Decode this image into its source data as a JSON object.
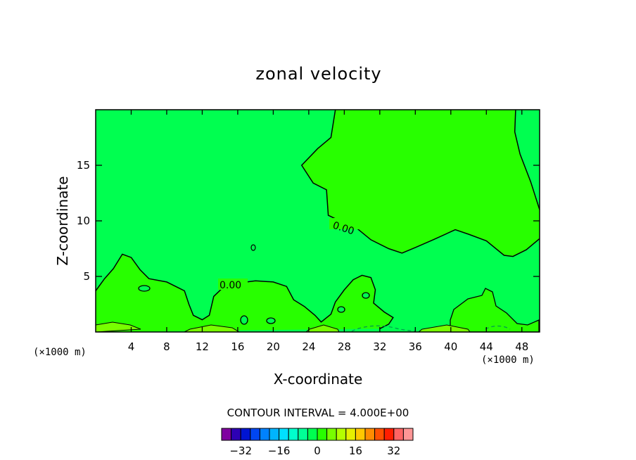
{
  "chart_data": {
    "type": "contour",
    "title": "zonal velocity",
    "xlabel": "X-coordinate",
    "ylabel": "Z-coordinate",
    "x_unit": "(×1000 m)",
    "z_unit": "(×1000 m)",
    "xlim": [
      0,
      50
    ],
    "ylim": [
      0,
      20
    ],
    "x_ticks": [
      4,
      8,
      12,
      16,
      20,
      24,
      28,
      32,
      36,
      40,
      44,
      48
    ],
    "y_ticks": [
      5,
      10,
      15
    ],
    "contour_interval_text": "CONTOUR INTERVAL = 4.000E+00",
    "contour_labels": [
      "0.00",
      "0.00"
    ],
    "zero_contour_upper": [
      [
        27,
        20
      ],
      [
        26.5,
        17.5
      ],
      [
        25,
        16.5
      ],
      [
        23.2,
        15
      ],
      [
        24.5,
        13.4
      ],
      [
        26,
        12.8
      ],
      [
        26.2,
        10.5
      ],
      [
        27.5,
        10
      ],
      [
        29,
        9.6
      ],
      [
        31,
        8.3
      ],
      [
        33,
        7.5
      ],
      [
        34.5,
        7.1
      ],
      [
        36,
        7.6
      ],
      [
        38,
        8.3
      ],
      [
        40.5,
        9.2
      ],
      [
        42,
        8.8
      ],
      [
        44,
        8.2
      ],
      [
        46,
        6.9
      ],
      [
        47,
        6.8
      ],
      [
        48.5,
        7.4
      ],
      [
        50,
        8.4
      ]
    ],
    "zero_contour_right": [
      [
        47.3,
        20
      ],
      [
        47.2,
        18
      ],
      [
        47.8,
        16
      ],
      [
        49,
        13.5
      ],
      [
        50,
        11
      ]
    ],
    "zero_contour_lower": [
      [
        0,
        3.7
      ],
      [
        1,
        4.8
      ],
      [
        2,
        5.7
      ],
      [
        3,
        7
      ],
      [
        4,
        6.7
      ],
      [
        5,
        5.6
      ],
      [
        6,
        4.8
      ],
      [
        8,
        4.5
      ],
      [
        10,
        3.7
      ],
      [
        10.5,
        2.5
      ],
      [
        11,
        1.5
      ],
      [
        12,
        1.1
      ],
      [
        12.8,
        1.5
      ],
      [
        13.3,
        3.2
      ],
      [
        14.6,
        4.2
      ],
      [
        16,
        4.4
      ],
      [
        18,
        4.6
      ],
      [
        20,
        4.5
      ],
      [
        21.5,
        4.1
      ],
      [
        22.3,
        2.9
      ],
      [
        23.5,
        2.3
      ],
      [
        24.7,
        1.5
      ],
      [
        25.4,
        0.9
      ],
      [
        26.5,
        1.6
      ],
      [
        27,
        2.7
      ],
      [
        28,
        3.8
      ],
      [
        29,
        4.7
      ],
      [
        30,
        5.1
      ],
      [
        31,
        4.9
      ],
      [
        31.5,
        3.8
      ],
      [
        31.3,
        2.6
      ],
      [
        32.5,
        1.8
      ],
      [
        33.5,
        1.3
      ],
      [
        33,
        0.7
      ],
      [
        32,
        0.3
      ]
    ],
    "colorbar": {
      "levels": [
        -36,
        -32,
        -28,
        -24,
        -20,
        -16,
        -12,
        -8,
        -4,
        0,
        4,
        8,
        12,
        16,
        20,
        24,
        28,
        32,
        36
      ],
      "tick_labels": [
        "-32",
        "-16",
        "0",
        "16",
        "32"
      ],
      "colors": [
        "#7f00a0",
        "#2d00b4",
        "#0014d2",
        "#0046f0",
        "#0082ff",
        "#00b4ff",
        "#00e0ff",
        "#00ffcc",
        "#00ff96",
        "#00ff50",
        "#28ff00",
        "#78ff00",
        "#b4ff00",
        "#e6f000",
        "#ffc800",
        "#ff8c00",
        "#ff5000",
        "#ff1e00",
        "#ff6464",
        "#ff9696"
      ]
    },
    "fill_background": "#00ff50",
    "fill_positive": "#28ff00",
    "fill_positive_strong": "#78ff00"
  }
}
